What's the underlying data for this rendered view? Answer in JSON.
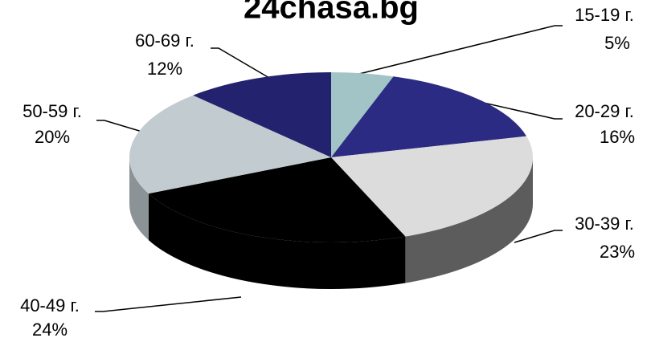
{
  "chart_data": {
    "type": "pie",
    "title": "24chasa.bg",
    "categories": [
      "15-19 г.",
      "20-29 г.",
      "30-39 г.",
      "40-49 г.",
      "50-59 г.",
      "60-69 г."
    ],
    "values": [
      5,
      16,
      23,
      24,
      20,
      12
    ],
    "value_labels": [
      "5%",
      "16%",
      "23%",
      "24%",
      "20%",
      "12%"
    ],
    "colors": [
      "#a3c4c6",
      "#2b2b84",
      "#dcdcdc",
      "#000000",
      "#c2ccd0",
      "#22226e"
    ]
  }
}
